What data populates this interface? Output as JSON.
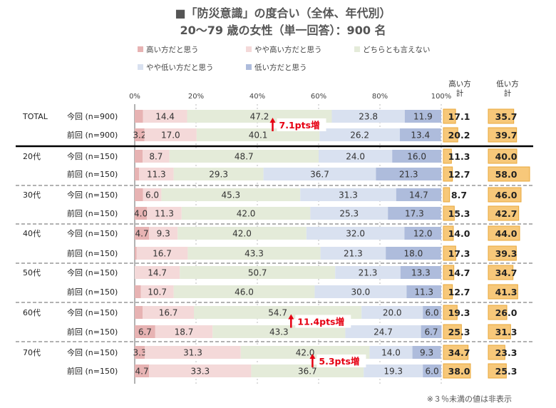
{
  "chart_data": {
    "type": "bar",
    "orientation": "horizontal",
    "stacked": true,
    "title": "■「防災意識」の度合い（全体、年代別）",
    "subtitle": "20〜79 歳の女性（単一回答）：900 名",
    "xlim": [
      0,
      100
    ],
    "x_ticks": [
      "0%",
      "20%",
      "40%",
      "60%",
      "80%",
      "100%"
    ],
    "legend_position": "top",
    "series": [
      {
        "name": "高い方だと思う",
        "color": "#e7b3b3"
      },
      {
        "name": "やや高い方だと思う",
        "color": "#f4d9d9"
      },
      {
        "name": "どちらとも言えない",
        "color": "#e4ebd9"
      },
      {
        "name": "やや低い方だと思う",
        "color": "#d9e1f0"
      },
      {
        "name": "低い方だと思う",
        "color": "#aebcdc"
      }
    ],
    "summary_headers": {
      "high": "高い方\n計",
      "low": "低い方\n計"
    },
    "groups": [
      {
        "label": "TOTAL",
        "rows": [
          {
            "label": "今回 (n=900)",
            "values": [
              2.7,
              14.4,
              47.2,
              23.8,
              11.9
            ],
            "labels": [
              "",
              "14.4",
              "47.2",
              "23.8",
              "11.9"
            ],
            "high": "17.1",
            "low": "35.7"
          },
          {
            "label": "前回 (n=900)",
            "values": [
              3.2,
              17.0,
              40.1,
              26.2,
              13.4
            ],
            "labels": [
              "3.2",
              "17.0",
              "40.1",
              "26.2",
              "13.4"
            ],
            "high": "20.2",
            "low": "39.7"
          }
        ]
      },
      {
        "label": "20代",
        "rows": [
          {
            "label": "今回 (n=150)",
            "values": [
              2.6,
              8.7,
              48.7,
              24.0,
              16.0
            ],
            "labels": [
              "",
              "8.7",
              "48.7",
              "24.0",
              "16.0"
            ],
            "high": "11.3",
            "low": "40.0"
          },
          {
            "label": "前回 (n=150)",
            "values": [
              1.4,
              11.3,
              29.3,
              36.7,
              21.3
            ],
            "labels": [
              "",
              "11.3",
              "29.3",
              "36.7",
              "21.3"
            ],
            "high": "12.7",
            "low": "58.0"
          }
        ]
      },
      {
        "label": "30代",
        "rows": [
          {
            "label": "今回 (n=150)",
            "values": [
              2.7,
              6.0,
              45.3,
              31.3,
              14.7
            ],
            "labels": [
              "",
              "6.0",
              "45.3",
              "31.3",
              "14.7"
            ],
            "high": "8.7",
            "low": "46.0"
          },
          {
            "label": "前回 (n=150)",
            "values": [
              4.0,
              11.3,
              42.0,
              25.3,
              17.3
            ],
            "labels": [
              "4.0",
              "11.3",
              "42.0",
              "25.3",
              "17.3"
            ],
            "high": "15.3",
            "low": "42.7"
          }
        ]
      },
      {
        "label": "40代",
        "rows": [
          {
            "label": "今回 (n=150)",
            "values": [
              4.7,
              9.3,
              42.0,
              32.0,
              12.0
            ],
            "labels": [
              "4.7",
              "9.3",
              "42.0",
              "32.0",
              "12.0"
            ],
            "high": "14.0",
            "low": "44.0"
          },
          {
            "label": "前回 (n=150)",
            "values": [
              0.6,
              16.7,
              43.3,
              21.3,
              18.0
            ],
            "labels": [
              "",
              "16.7",
              "43.3",
              "21.3",
              "18.0"
            ],
            "high": "17.3",
            "low": "39.3"
          }
        ]
      },
      {
        "label": "50代",
        "rows": [
          {
            "label": "今回 (n=150)",
            "values": [
              0.0,
              14.7,
              50.7,
              21.3,
              13.3
            ],
            "labels": [
              "",
              "14.7",
              "50.7",
              "21.3",
              "13.3"
            ],
            "high": "14.7",
            "low": "34.7"
          },
          {
            "label": "前回 (n=150)",
            "values": [
              2.0,
              10.7,
              46.0,
              30.0,
              11.3
            ],
            "labels": [
              "",
              "10.7",
              "46.0",
              "30.0",
              "11.3"
            ],
            "high": "12.7",
            "low": "41.3"
          }
        ]
      },
      {
        "label": "60代",
        "rows": [
          {
            "label": "今回 (n=150)",
            "values": [
              2.6,
              16.7,
              54.7,
              20.0,
              6.0
            ],
            "labels": [
              "",
              "16.7",
              "54.7",
              "20.0",
              "6.0"
            ],
            "high": "19.3",
            "low": "26.0"
          },
          {
            "label": "前回 (n=150)",
            "values": [
              6.7,
              18.7,
              43.3,
              24.7,
              6.7
            ],
            "labels": [
              "6.7",
              "18.7",
              "43.3",
              "24.7",
              "6.7"
            ],
            "high": "25.3",
            "low": "31.3"
          }
        ]
      },
      {
        "label": "70代",
        "rows": [
          {
            "label": "今回 (n=150)",
            "values": [
              3.3,
              31.3,
              42.0,
              14.0,
              9.3
            ],
            "labels": [
              "3.3",
              "31.3",
              "42.0",
              "14.0",
              "9.3"
            ],
            "high": "34.7",
            "low": "23.3"
          },
          {
            "label": "前回 (n=150)",
            "values": [
              4.7,
              33.3,
              36.7,
              19.3,
              6.0
            ],
            "labels": [
              "4.7",
              "33.3",
              "36.7",
              "19.3",
              "6.0"
            ],
            "high": "38.0",
            "low": "25.3"
          }
        ]
      }
    ],
    "annotations": [
      {
        "text": "7.1pts増",
        "group": 0,
        "x_value": 45
      },
      {
        "text": "11.4pts増",
        "group": 5,
        "x_value": 51
      },
      {
        "text": "5.3pts増",
        "group": 6,
        "x_value": 58
      }
    ],
    "footnote": "※３％未満の値は非表示"
  }
}
